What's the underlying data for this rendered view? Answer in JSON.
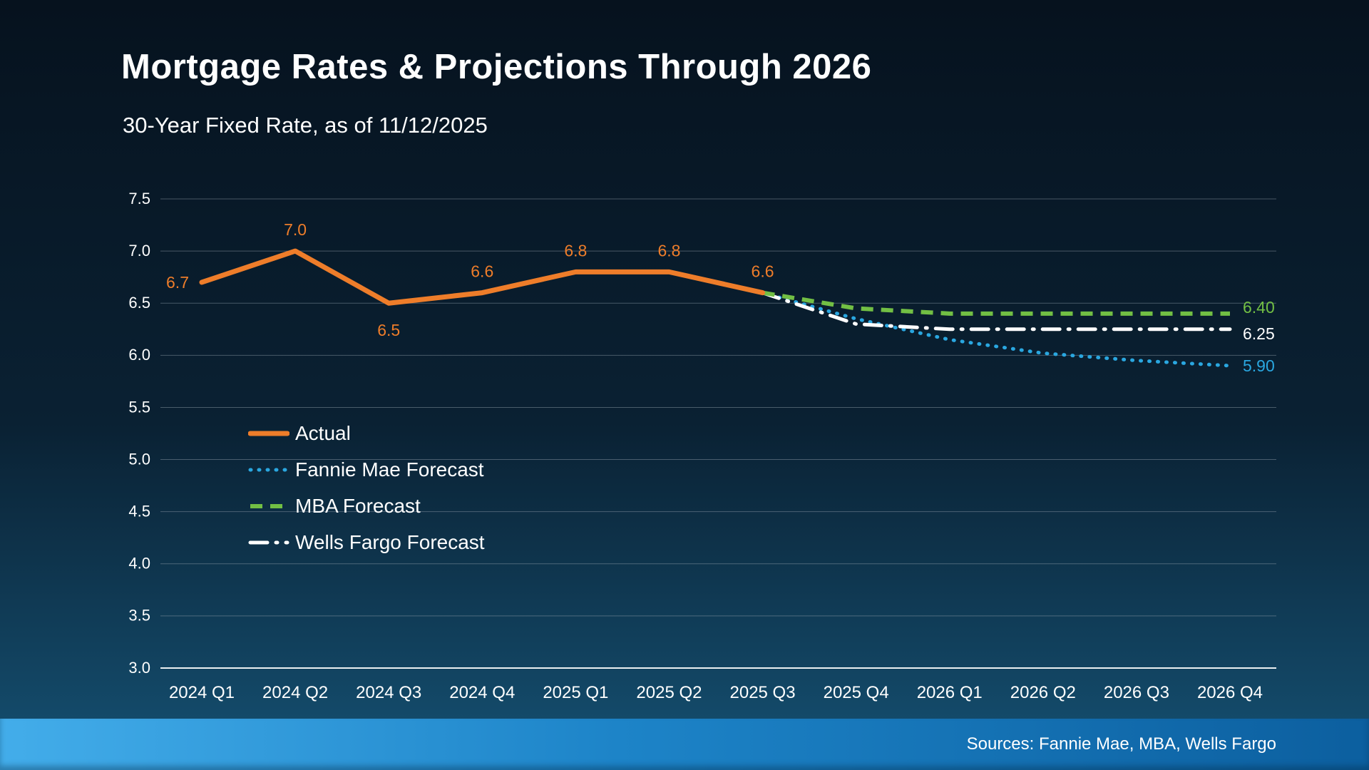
{
  "title": "Mortgage Rates & Projections Through 2026",
  "subtitle": "30-Year Fixed Rate, as of 11/12/2025",
  "footer": {
    "sources": "Sources: Fannie Mae, MBA, Wells Fargo"
  },
  "chart_data": {
    "type": "line",
    "title": "Mortgage Rates & Projections Through 2026",
    "subtitle": "30-Year Fixed Rate, as of 11/12/2025",
    "categories": [
      "2024 Q1",
      "2024 Q2",
      "2024 Q3",
      "2024 Q4",
      "2025 Q1",
      "2025 Q2",
      "2025 Q3",
      "2025 Q4",
      "2026 Q1",
      "2026 Q2",
      "2026 Q3",
      "2026 Q4"
    ],
    "ylim": [
      3.0,
      7.5
    ],
    "ytick_step": 0.5,
    "grid": true,
    "legend_position": "inside-left",
    "series": [
      {
        "name": "Actual",
        "color": "#ee7d2a",
        "style": "solid",
        "start_index": 0,
        "values": [
          6.7,
          7.0,
          6.5,
          6.6,
          6.8,
          6.8,
          6.6
        ],
        "point_labels": [
          "6.7",
          "7.0",
          "6.5",
          "6.6",
          "6.8",
          "6.8",
          "6.6"
        ],
        "point_label_pos": [
          "left",
          "above",
          "below",
          "above",
          "above",
          "above",
          "above"
        ]
      },
      {
        "name": "Fannie Mae Forecast",
        "color": "#2aa7e0",
        "style": "dotted",
        "start_index": 6,
        "values": [
          6.6,
          6.35,
          6.15,
          6.02,
          5.95,
          5.9
        ],
        "end_label": "5.90",
        "end_label_dy": 2
      },
      {
        "name": "MBA Forecast",
        "color": "#72bf44",
        "style": "dashed",
        "start_index": 6,
        "values": [
          6.6,
          6.45,
          6.4,
          6.4,
          6.4,
          6.4
        ],
        "end_label": "6.40",
        "end_label_dy": -7
      },
      {
        "name": "Wells Fargo Forecast",
        "color": "#ffffff",
        "style": "dashdot",
        "start_index": 6,
        "values": [
          6.6,
          6.3,
          6.25,
          6.25,
          6.25,
          6.25
        ],
        "end_label": "6.25",
        "end_label_dy": 8
      }
    ]
  }
}
